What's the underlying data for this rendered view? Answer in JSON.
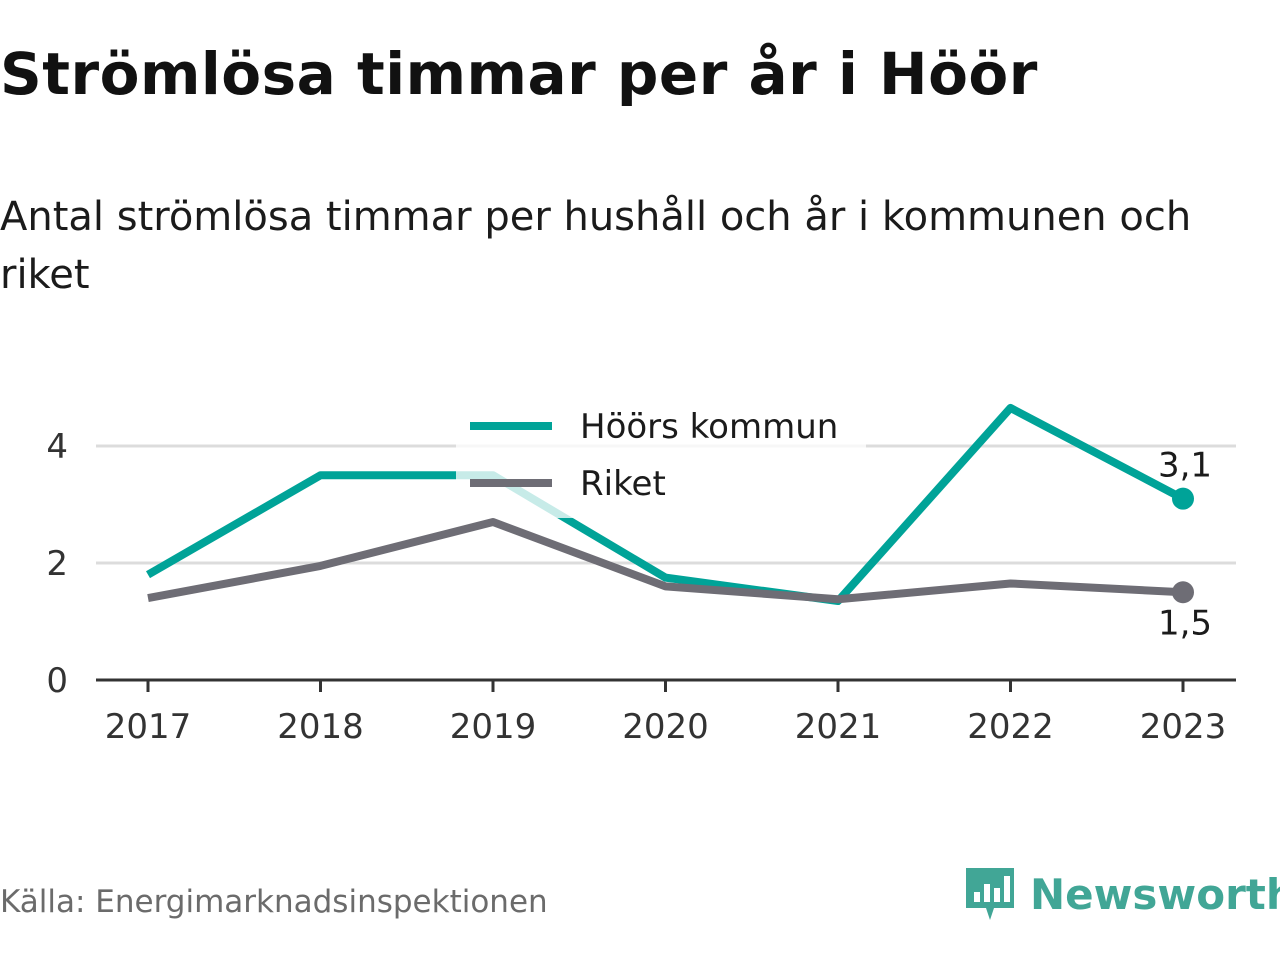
{
  "title": "Strömlösa timmar per år i Höör",
  "subtitle": "Antal strömlösa timmar per hushåll och år i kommunen och riket",
  "source": "Källa: Energimarknadsinspektionen",
  "brand": {
    "name": "Newsworthy",
    "icon": "newsworthy-logo-icon",
    "color": "#41a696"
  },
  "chart_data": {
    "type": "line",
    "x": [
      "2017",
      "2018",
      "2019",
      "2020",
      "2021",
      "2022",
      "2023"
    ],
    "ylim": [
      0,
      4.8
    ],
    "yticks": [
      "0",
      "2",
      "4"
    ],
    "grid": true,
    "legend_position": "top-center",
    "series": [
      {
        "name": "Höörs kommun",
        "color": "#00a398",
        "values": [
          1.8,
          3.5,
          3.5,
          1.75,
          1.35,
          4.65,
          3.1
        ],
        "end_label": "3,1"
      },
      {
        "name": "Riket",
        "color": "#6e6d75",
        "values": [
          1.4,
          1.95,
          2.7,
          1.6,
          1.38,
          1.65,
          1.5
        ],
        "end_label": "1,5"
      }
    ]
  }
}
